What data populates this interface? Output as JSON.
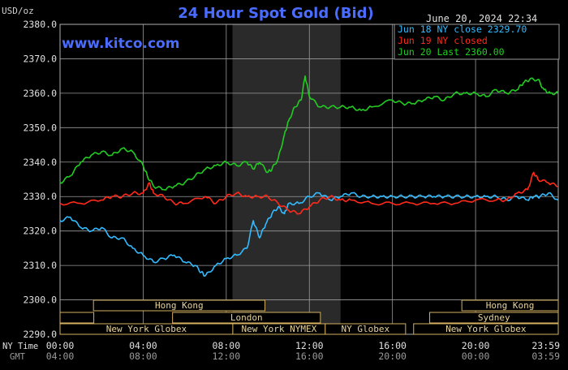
{
  "header": {
    "units": "USD/oz",
    "title": "24 Hour Spot Gold (Bid)",
    "datetime": "June 20, 2024 22:34",
    "brand": "www.kitco.com"
  },
  "legend": [
    {
      "label": "Jun 18 NY close 2329.70",
      "color": "#33bbff"
    },
    {
      "label": "Jun 19 NY closed",
      "color": "#ff2a1a"
    },
    {
      "label": "Jun 20 Last 2360.00",
      "color": "#22cc22"
    }
  ],
  "axis_labels": {
    "ny": "NY Time",
    "gmt": "GMT"
  },
  "colors": {
    "grid": "#9a9a9a",
    "shade": "#2a2a2a",
    "session_border": "#d4b060",
    "session_text": "#e8d39a",
    "title": "#4a6cff",
    "ny_time": "#e0e0e0",
    "gmt_time": "#9a9a9a"
  },
  "sessions": [
    {
      "label": "Hong Kong",
      "row": 0,
      "start": 2.08,
      "end": 12.75
    },
    {
      "label": "",
      "row": 1,
      "start": 0,
      "end": 2.1
    },
    {
      "label": "London",
      "row": 1,
      "start": 7.0,
      "end": 16.2
    },
    {
      "label": "New York Globex",
      "row": 2,
      "start": 0,
      "end": 10.75
    },
    {
      "label": "New York NYMEX",
      "row": 2,
      "start": 10.75,
      "end": 16.5
    },
    {
      "label": "NY Globex",
      "row": 2,
      "start": 16.5,
      "end": 21.5
    },
    {
      "label": "New York Globex",
      "row": 2,
      "start": 22.0,
      "end": 31.0
    },
    {
      "label": "Sydney",
      "row": 1,
      "start": 23.0,
      "end": 31.0
    },
    {
      "label": "Hong Kong",
      "row": 0,
      "start": 25.0,
      "end": 31.0
    }
  ],
  "chart_data": {
    "type": "line",
    "title": "24 Hour Spot Gold (Bid)",
    "ylabel": "USD/oz",
    "ylim": [
      2290,
      2380
    ],
    "xlim": [
      0,
      23.98
    ],
    "yticks": [
      2290,
      2300,
      2310,
      2320,
      2330,
      2340,
      2350,
      2360,
      2370,
      2380
    ],
    "ytick_labels": [
      "2290.0",
      "2300.0",
      "2310.0",
      "2320.0",
      "2330.0",
      "2340.0",
      "2350.0",
      "2360.0",
      "2370.0",
      "2380.0"
    ],
    "xticks": [
      0,
      4,
      8,
      12,
      16,
      20,
      23.98
    ],
    "xtick_labels_ny": [
      "00:00",
      "04:00",
      "08:00",
      "12:00",
      "16:00",
      "20:00",
      "23:59"
    ],
    "xtick_labels_gmt": [
      "04:00",
      "08:00",
      "12:00",
      "16:00",
      "20:00",
      "00:00",
      "03:59"
    ],
    "shaded_range": [
      8.3,
      13.5
    ],
    "grid": true,
    "legend_position": "top-right",
    "series": [
      {
        "name": "Jun 18 NY close 2329.70",
        "color": "#33bbff",
        "x": [
          0,
          0.5,
          1,
          1.5,
          2,
          2.5,
          3,
          3.5,
          4,
          4.5,
          5,
          5.5,
          6,
          6.5,
          6.8,
          7,
          7.5,
          8,
          8.5,
          9,
          9.3,
          9.6,
          9.9,
          10.2,
          10.5,
          10.8,
          11,
          11.5,
          12,
          12.5,
          13,
          13.5,
          14,
          14.5,
          15,
          15.5,
          16,
          16.5,
          17,
          17.5,
          18,
          18.5,
          19,
          19.5,
          20,
          20.5,
          21,
          21.5,
          22,
          22.5,
          22.8,
          23.1,
          23.5,
          23.98
        ],
        "y": [
          2323,
          2324,
          2321,
          2320,
          2321,
          2318,
          2318,
          2315,
          2313,
          2311,
          2312,
          2313,
          2311,
          2310,
          2308,
          2307,
          2310,
          2312,
          2313,
          2315,
          2323,
          2318,
          2322,
          2325,
          2327,
          2325,
          2328,
          2328,
          2330,
          2331,
          2329,
          2330,
          2331,
          2330,
          2330,
          2330,
          2330,
          2330,
          2330,
          2330,
          2330,
          2330,
          2330,
          2330,
          2330,
          2330,
          2330,
          2329,
          2330,
          2329,
          2330,
          2330,
          2331,
          2329
        ]
      },
      {
        "name": "Jun 19 NY closed",
        "color": "#ff2a1a",
        "x": [
          0,
          1,
          2,
          2.5,
          3,
          3.5,
          4,
          4.3,
          4.5,
          5,
          5.5,
          6,
          7,
          7.5,
          8,
          8.5,
          9,
          9.5,
          10,
          10.5,
          11,
          11.5,
          12,
          12.5,
          13,
          13.5,
          14,
          15,
          16,
          17,
          18,
          19,
          20,
          21,
          21.5,
          22,
          22.5,
          22.8,
          23,
          23.5,
          23.98
        ],
        "y": [
          2328,
          2328,
          2329,
          2330,
          2330,
          2331,
          2331,
          2334,
          2331,
          2330,
          2328,
          2328,
          2330,
          2328,
          2330,
          2331,
          2330,
          2330,
          2330,
          2328,
          2326,
          2325,
          2327,
          2329,
          2330,
          2329,
          2329,
          2328,
          2328,
          2328,
          2328,
          2328,
          2329,
          2329,
          2329,
          2331,
          2332,
          2337,
          2335,
          2334,
          2333
        ]
      },
      {
        "name": "Jun 20 Last 2360.00",
        "color": "#22cc22",
        "x": [
          0,
          0.5,
          1,
          1.5,
          2,
          2.5,
          3,
          3.5,
          4,
          4.2,
          4.5,
          5,
          5.5,
          6,
          6.5,
          7,
          7.5,
          8,
          8.5,
          9,
          9.3,
          9.6,
          10,
          10.2,
          10.5,
          10.8,
          11,
          11.3,
          11.6,
          11.8,
          12,
          12.5,
          13,
          13.5,
          14,
          14.5,
          15,
          16,
          16.5,
          17,
          17.5,
          18,
          18.5,
          19,
          19.5,
          20,
          20.5,
          21,
          21.5,
          22,
          22.3,
          22.6,
          23,
          23.3,
          23.6,
          23.98
        ],
        "y": [
          2334,
          2336,
          2340,
          2342,
          2343,
          2342,
          2344,
          2343,
          2339,
          2336,
          2333,
          2332,
          2333,
          2334,
          2336,
          2338,
          2339,
          2340,
          2339,
          2340,
          2338,
          2340,
          2337,
          2338,
          2341,
          2348,
          2352,
          2356,
          2358,
          2365,
          2359,
          2356,
          2356,
          2356,
          2356,
          2355,
          2356,
          2358,
          2357,
          2357,
          2358,
          2359,
          2358,
          2360,
          2360,
          2360,
          2359,
          2361,
          2360,
          2361,
          2363,
          2364,
          2364,
          2361,
          2360,
          2360
        ]
      }
    ]
  }
}
